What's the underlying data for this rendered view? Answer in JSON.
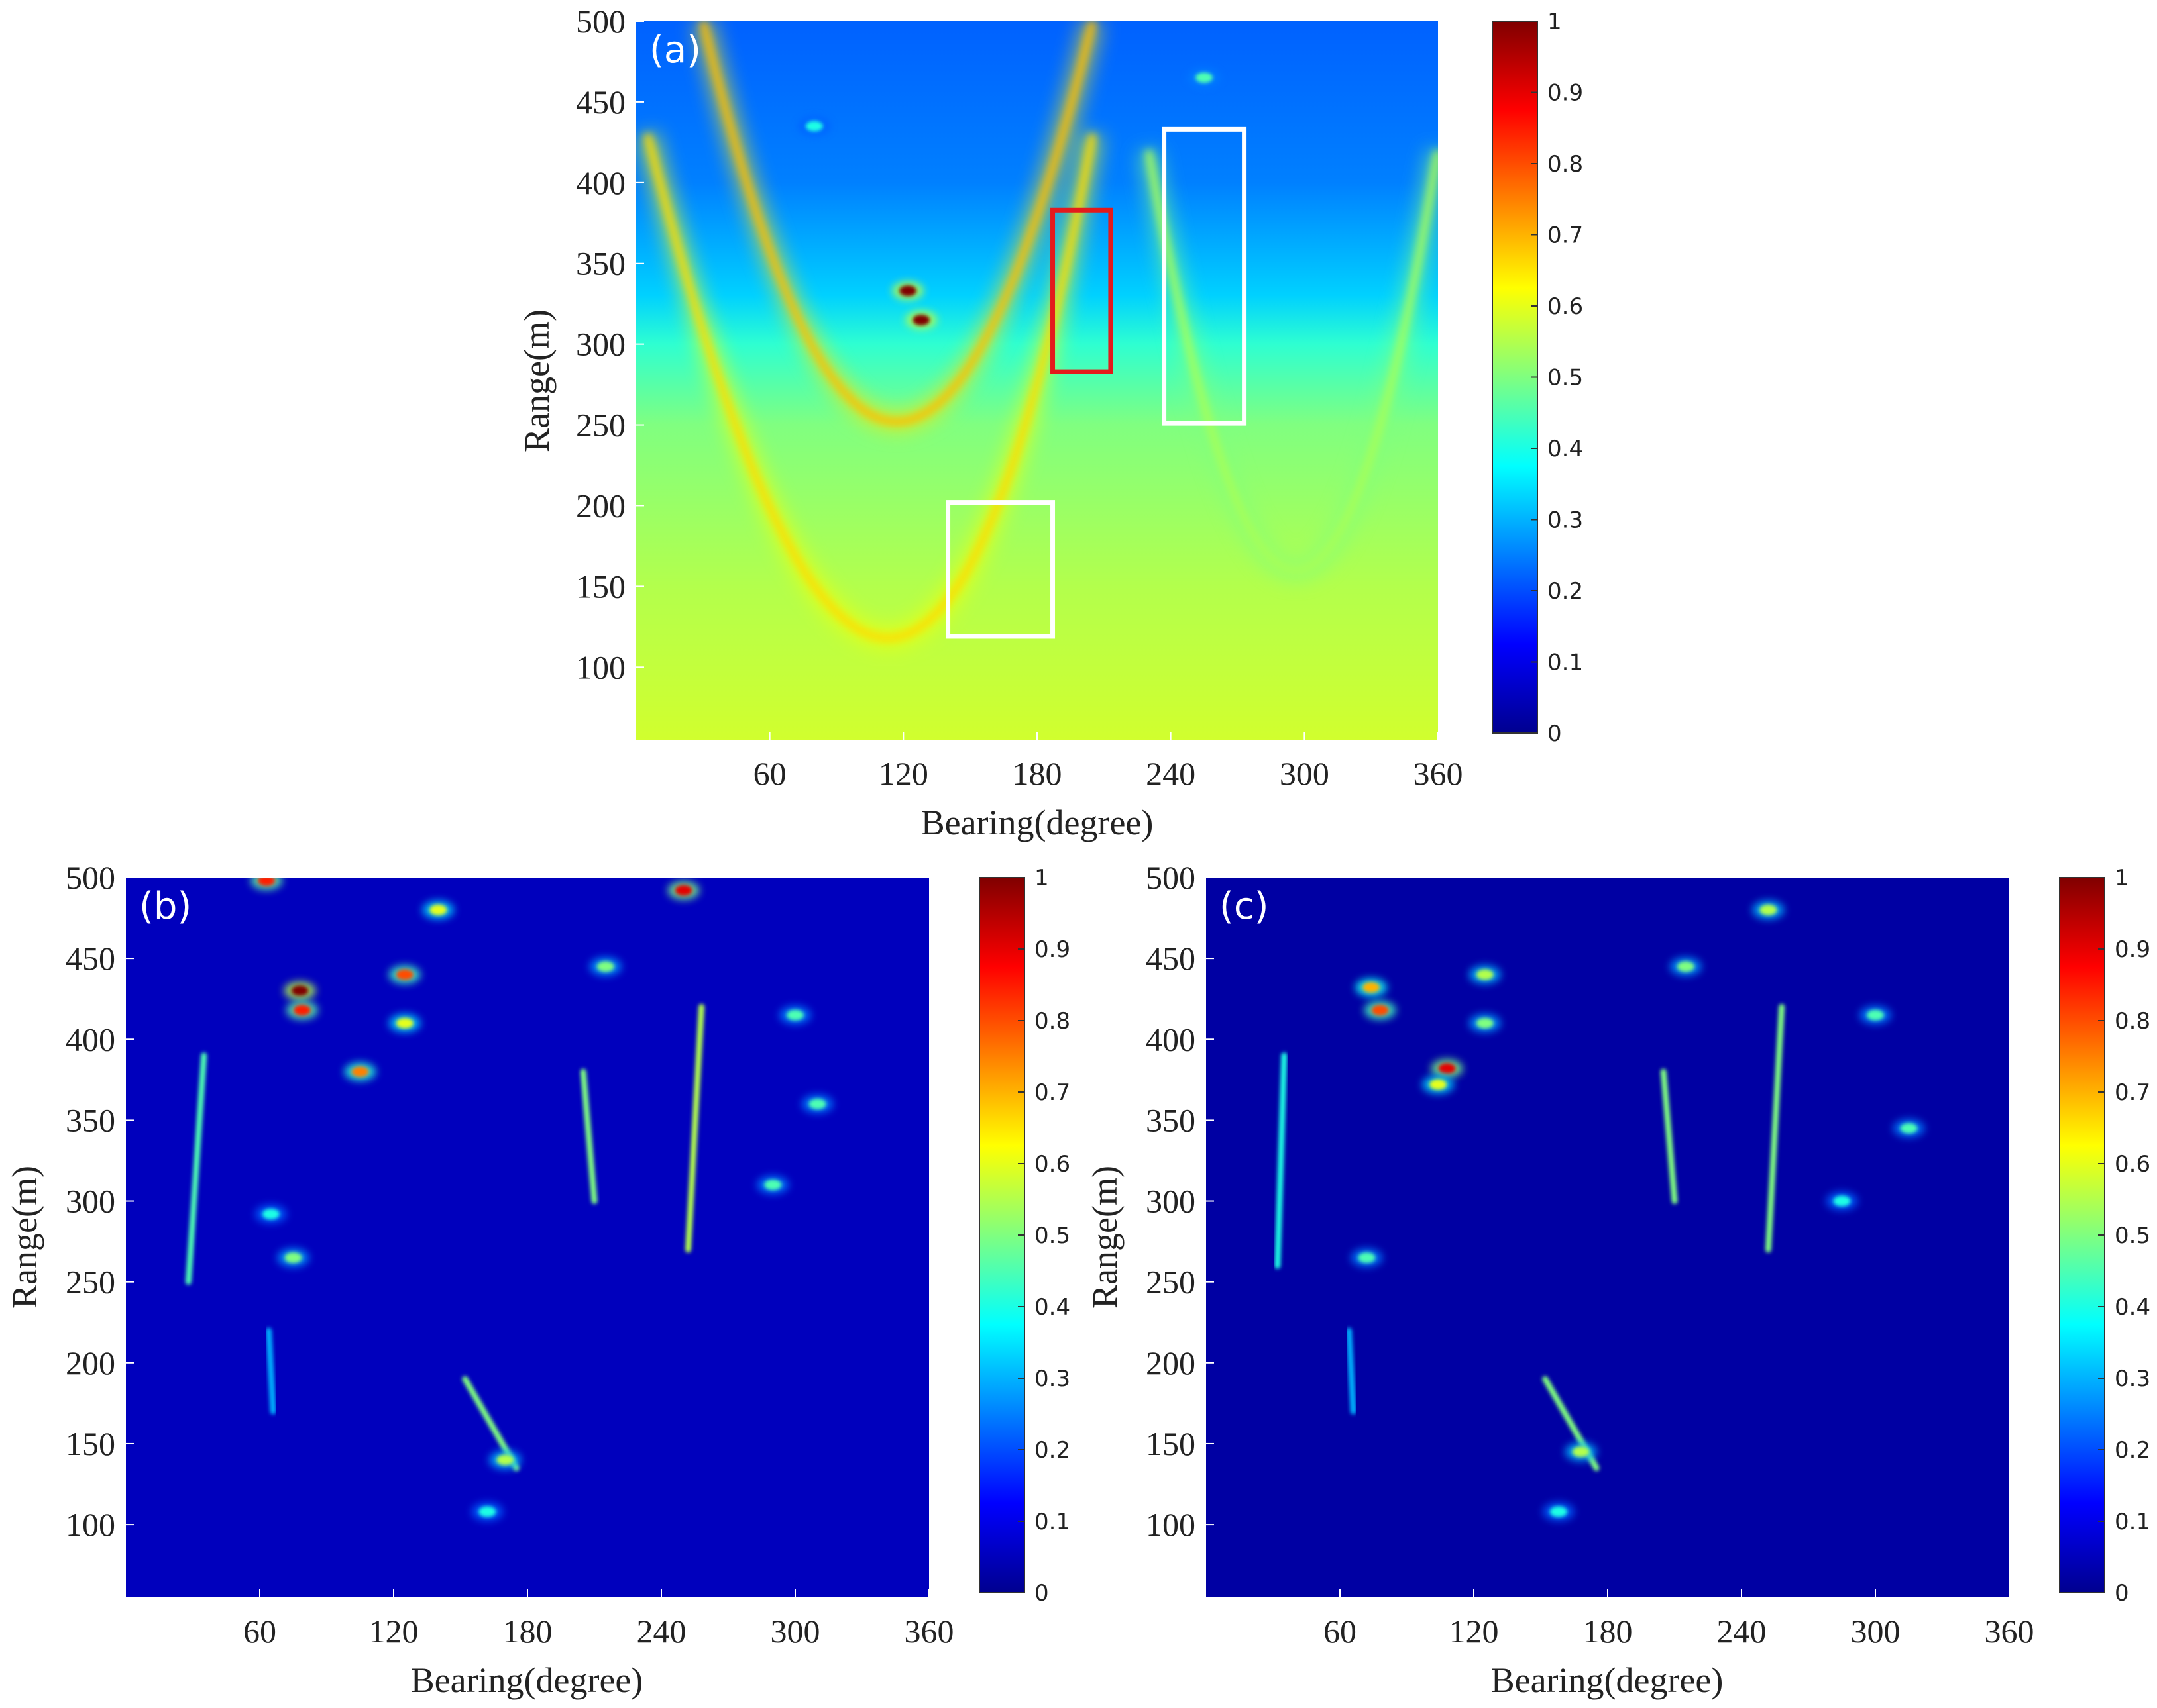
{
  "chart_data": [
    {
      "type": "heatmap",
      "panel_label": "(a)",
      "xlabel": "Bearing(degree)",
      "ylabel": "Range(m)",
      "xlim": [
        0,
        360
      ],
      "ylim": [
        55,
        500
      ],
      "xticks": [
        60,
        120,
        180,
        240,
        300,
        360
      ],
      "yticks": [
        100,
        150,
        200,
        250,
        300,
        350,
        400,
        450,
        500
      ],
      "colormap": "jet",
      "colorbar": {
        "range": [
          0,
          1
        ],
        "ticks": [
          0,
          0.1,
          0.2,
          0.3,
          0.4,
          0.5,
          0.6,
          0.7,
          0.8,
          0.9,
          1
        ],
        "tick_labels": [
          "0",
          "0.1",
          "0.2",
          "0.3",
          "0.4",
          "0.5",
          "0.6",
          "0.7",
          "0.8",
          "0.9",
          "1"
        ]
      },
      "background_gradient": [
        {
          "range": 500,
          "value": 0.22
        },
        {
          "range": 400,
          "value": 0.25
        },
        {
          "range": 330,
          "value": 0.33
        },
        {
          "range": 300,
          "value": 0.42
        },
        {
          "range": 250,
          "value": 0.5
        },
        {
          "range": 150,
          "value": 0.55
        },
        {
          "range": 55,
          "value": 0.58
        }
      ],
      "arcs": [
        {
          "bearing_left": 30,
          "bearing_center": 120,
          "bearing_right": 205,
          "range_top": 500,
          "range_bottom": 252,
          "value": 0.65
        },
        {
          "bearing_left": 5,
          "bearing_center": 125,
          "bearing_right": 205,
          "range_top": 430,
          "range_bottom": 118,
          "value": 0.62
        },
        {
          "bearing_left": 230,
          "bearing_center": 300,
          "bearing_right": 360,
          "range_top": 420,
          "range_bottom": 160,
          "value": 0.5
        }
      ],
      "hotspots": [
        {
          "bearing": 122,
          "range": 333,
          "value": 1.0
        },
        {
          "bearing": 128,
          "range": 315,
          "value": 1.0
        },
        {
          "bearing": 80,
          "range": 435,
          "value": 0.4
        },
        {
          "bearing": 255,
          "range": 465,
          "value": 0.45
        }
      ],
      "regions": [
        {
          "color": "#e41a1c",
          "bearing": [
            187,
            213
          ],
          "range": [
            283,
            383
          ]
        },
        {
          "color": "#ffffff",
          "bearing": [
            237,
            273
          ],
          "range": [
            251,
            433
          ]
        },
        {
          "color": "#ffffff",
          "bearing": [
            140,
            187
          ],
          "range": [
            119,
            202
          ]
        }
      ]
    },
    {
      "type": "heatmap",
      "panel_label": "(b)",
      "xlabel": "Bearing(degree)",
      "ylabel": "Range(m)",
      "xlim": [
        0,
        360
      ],
      "ylim": [
        55,
        500
      ],
      "xticks": [
        60,
        120,
        180,
        240,
        300,
        360
      ],
      "yticks": [
        100,
        150,
        200,
        250,
        300,
        350,
        400,
        450,
        500
      ],
      "colormap": "jet",
      "background_value": 0.06,
      "colorbar": {
        "range": [
          0,
          1
        ],
        "ticks": [
          0,
          0.1,
          0.2,
          0.3,
          0.4,
          0.5,
          0.6,
          0.7,
          0.8,
          0.9,
          1
        ],
        "tick_labels": [
          "0",
          "0.1",
          "0.2",
          "0.3",
          "0.4",
          "0.5",
          "0.6",
          "0.7",
          "0.8",
          "0.9",
          "1"
        ]
      },
      "streaks": [
        {
          "from": [
            35,
            390
          ],
          "to": [
            28,
            250
          ],
          "value": 0.45
        },
        {
          "from": [
            205,
            380
          ],
          "to": [
            210,
            300
          ],
          "value": 0.5
        },
        {
          "from": [
            258,
            420
          ],
          "to": [
            252,
            270
          ],
          "value": 0.55
        },
        {
          "from": [
            152,
            190
          ],
          "to": [
            175,
            135
          ],
          "value": 0.5
        },
        {
          "from": [
            64,
            220
          ],
          "to": [
            66,
            170
          ],
          "value": 0.3
        }
      ],
      "hotspots": [
        {
          "bearing": 63,
          "range": 498,
          "value": 0.85
        },
        {
          "bearing": 78,
          "range": 430,
          "value": 1.0
        },
        {
          "bearing": 79,
          "range": 418,
          "value": 0.85
        },
        {
          "bearing": 105,
          "range": 380,
          "value": 0.75
        },
        {
          "bearing": 125,
          "range": 440,
          "value": 0.8
        },
        {
          "bearing": 125,
          "range": 410,
          "value": 0.6
        },
        {
          "bearing": 140,
          "range": 480,
          "value": 0.6
        },
        {
          "bearing": 250,
          "range": 492,
          "value": 0.9
        },
        {
          "bearing": 215,
          "range": 445,
          "value": 0.5
        },
        {
          "bearing": 310,
          "range": 360,
          "value": 0.45
        },
        {
          "bearing": 170,
          "range": 140,
          "value": 0.55
        },
        {
          "bearing": 162,
          "range": 108,
          "value": 0.4
        },
        {
          "bearing": 75,
          "range": 265,
          "value": 0.5
        },
        {
          "bearing": 65,
          "range": 292,
          "value": 0.4
        },
        {
          "bearing": 290,
          "range": 310,
          "value": 0.45
        },
        {
          "bearing": 300,
          "range": 415,
          "value": 0.45
        }
      ]
    },
    {
      "type": "heatmap",
      "panel_label": "(c)",
      "xlabel": "Bearing(degree)",
      "ylabel": "Range(m)",
      "xlim": [
        0,
        360
      ],
      "ylim": [
        55,
        500
      ],
      "xticks": [
        60,
        120,
        180,
        240,
        300,
        360
      ],
      "yticks": [
        100,
        150,
        200,
        250,
        300,
        350,
        400,
        450,
        500
      ],
      "colormap": "jet",
      "background_value": 0.035,
      "colorbar": {
        "range": [
          0,
          1
        ],
        "ticks": [
          0,
          0.1,
          0.2,
          0.3,
          0.4,
          0.5,
          0.6,
          0.7,
          0.8,
          0.9,
          1
        ],
        "tick_labels": [
          "0",
          "0.1",
          "0.2",
          "0.3",
          "0.4",
          "0.5",
          "0.6",
          "0.7",
          "0.8",
          "0.9",
          "1"
        ]
      },
      "streaks": [
        {
          "from": [
            35,
            390
          ],
          "to": [
            32,
            260
          ],
          "value": 0.4
        },
        {
          "from": [
            205,
            380
          ],
          "to": [
            210,
            300
          ],
          "value": 0.5
        },
        {
          "from": [
            258,
            420
          ],
          "to": [
            252,
            270
          ],
          "value": 0.5
        },
        {
          "from": [
            152,
            190
          ],
          "to": [
            175,
            135
          ],
          "value": 0.5
        },
        {
          "from": [
            64,
            220
          ],
          "to": [
            66,
            170
          ],
          "value": 0.3
        }
      ],
      "hotspots": [
        {
          "bearing": 78,
          "range": 418,
          "value": 0.8
        },
        {
          "bearing": 74,
          "range": 432,
          "value": 0.7
        },
        {
          "bearing": 108,
          "range": 382,
          "value": 0.9
        },
        {
          "bearing": 104,
          "range": 372,
          "value": 0.6
        },
        {
          "bearing": 125,
          "range": 440,
          "value": 0.55
        },
        {
          "bearing": 125,
          "range": 410,
          "value": 0.5
        },
        {
          "bearing": 252,
          "range": 480,
          "value": 0.55
        },
        {
          "bearing": 215,
          "range": 445,
          "value": 0.5
        },
        {
          "bearing": 315,
          "range": 345,
          "value": 0.45
        },
        {
          "bearing": 168,
          "range": 145,
          "value": 0.55
        },
        {
          "bearing": 158,
          "range": 108,
          "value": 0.4
        },
        {
          "bearing": 72,
          "range": 265,
          "value": 0.45
        },
        {
          "bearing": 300,
          "range": 415,
          "value": 0.45
        },
        {
          "bearing": 285,
          "range": 300,
          "value": 0.4
        }
      ]
    }
  ]
}
